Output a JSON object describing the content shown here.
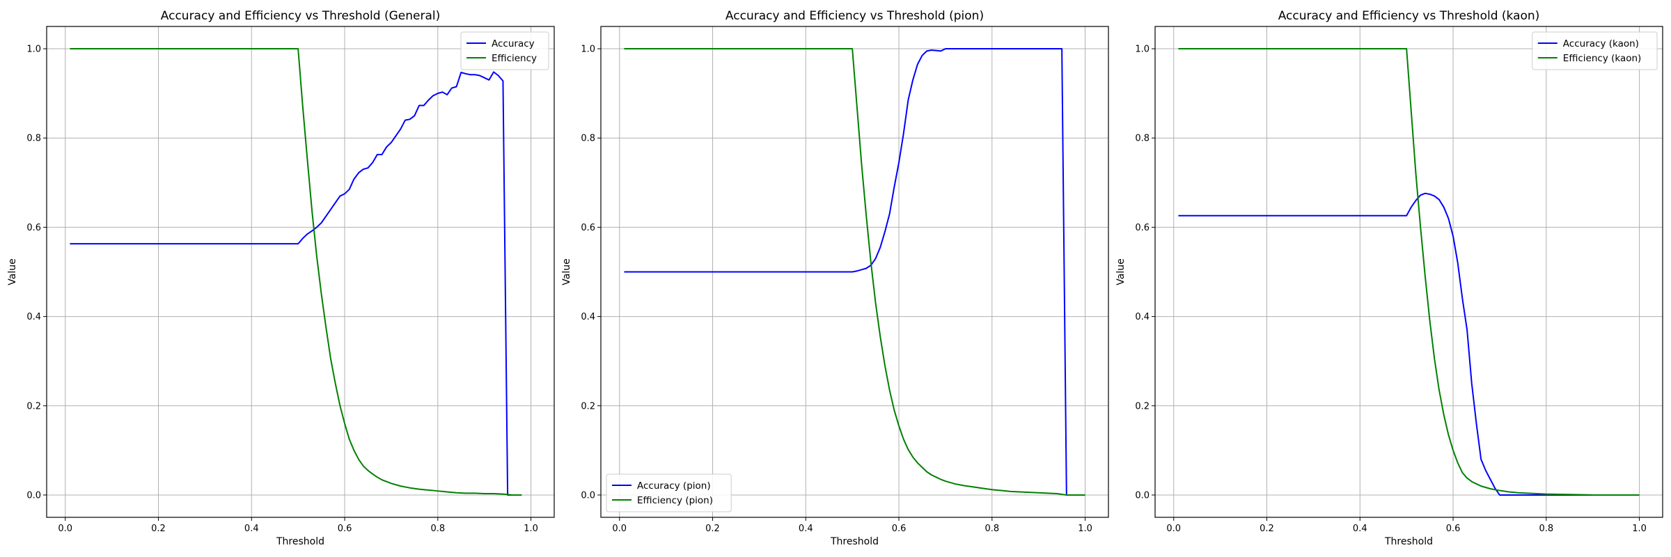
{
  "figure": {
    "colors": {
      "accuracy": "#0000ff",
      "efficiency": "#008000",
      "grid": "#b0b0b0",
      "axes": "#000000",
      "legend_border": "#cccccc"
    }
  },
  "chart_data": [
    {
      "type": "line",
      "title": "Accuracy and Efficiency vs Threshold (General)",
      "xlabel": "Threshold",
      "ylabel": "Value",
      "xlim": [
        -0.04,
        1.05
      ],
      "ylim": [
        -0.05,
        1.05
      ],
      "xticks": [
        "0.0",
        "0.2",
        "0.4",
        "0.6",
        "0.8",
        "1.0"
      ],
      "yticks": [
        "0.0",
        "0.2",
        "0.4",
        "0.6",
        "0.8",
        "1.0"
      ],
      "grid": true,
      "legend_position": "upper right",
      "series": [
        {
          "name": "Accuracy",
          "color": "#0000ff",
          "points": [
            [
              0.01,
              0.563
            ],
            [
              0.5,
              0.563
            ],
            [
              0.51,
              0.575
            ],
            [
              0.52,
              0.585
            ],
            [
              0.53,
              0.592
            ],
            [
              0.54,
              0.6
            ],
            [
              0.55,
              0.61
            ],
            [
              0.56,
              0.625
            ],
            [
              0.57,
              0.64
            ],
            [
              0.58,
              0.655
            ],
            [
              0.59,
              0.67
            ],
            [
              0.6,
              0.675
            ],
            [
              0.61,
              0.685
            ],
            [
              0.62,
              0.708
            ],
            [
              0.63,
              0.722
            ],
            [
              0.64,
              0.73
            ],
            [
              0.65,
              0.733
            ],
            [
              0.66,
              0.745
            ],
            [
              0.67,
              0.763
            ],
            [
              0.68,
              0.763
            ],
            [
              0.69,
              0.78
            ],
            [
              0.7,
              0.79
            ],
            [
              0.71,
              0.805
            ],
            [
              0.72,
              0.82
            ],
            [
              0.73,
              0.84
            ],
            [
              0.74,
              0.842
            ],
            [
              0.75,
              0.85
            ],
            [
              0.76,
              0.873
            ],
            [
              0.77,
              0.873
            ],
            [
              0.78,
              0.885
            ],
            [
              0.79,
              0.895
            ],
            [
              0.8,
              0.9
            ],
            [
              0.81,
              0.903
            ],
            [
              0.82,
              0.897
            ],
            [
              0.83,
              0.912
            ],
            [
              0.84,
              0.915
            ],
            [
              0.85,
              0.947
            ],
            [
              0.86,
              0.944
            ],
            [
              0.87,
              0.942
            ],
            [
              0.88,
              0.942
            ],
            [
              0.89,
              0.94
            ],
            [
              0.9,
              0.935
            ],
            [
              0.91,
              0.93
            ],
            [
              0.92,
              0.948
            ],
            [
              0.93,
              0.94
            ],
            [
              0.94,
              0.928
            ],
            [
              0.95,
              0.0
            ],
            [
              0.98,
              0.0
            ]
          ]
        },
        {
          "name": "Efficiency",
          "color": "#008000",
          "points": [
            [
              0.01,
              1.0
            ],
            [
              0.5,
              1.0
            ],
            [
              0.51,
              0.87
            ],
            [
              0.52,
              0.75
            ],
            [
              0.53,
              0.635
            ],
            [
              0.54,
              0.535
            ],
            [
              0.55,
              0.45
            ],
            [
              0.56,
              0.375
            ],
            [
              0.57,
              0.305
            ],
            [
              0.58,
              0.25
            ],
            [
              0.59,
              0.2
            ],
            [
              0.6,
              0.16
            ],
            [
              0.61,
              0.125
            ],
            [
              0.62,
              0.1
            ],
            [
              0.63,
              0.08
            ],
            [
              0.64,
              0.065
            ],
            [
              0.65,
              0.055
            ],
            [
              0.66,
              0.047
            ],
            [
              0.67,
              0.04
            ],
            [
              0.68,
              0.034
            ],
            [
              0.69,
              0.03
            ],
            [
              0.7,
              0.026
            ],
            [
              0.72,
              0.02
            ],
            [
              0.74,
              0.016
            ],
            [
              0.76,
              0.013
            ],
            [
              0.78,
              0.011
            ],
            [
              0.8,
              0.009
            ],
            [
              0.82,
              0.007
            ],
            [
              0.84,
              0.005
            ],
            [
              0.86,
              0.004
            ],
            [
              0.88,
              0.004
            ],
            [
              0.9,
              0.003
            ],
            [
              0.92,
              0.003
            ],
            [
              0.94,
              0.002
            ],
            [
              0.96,
              0.0
            ],
            [
              0.98,
              0.0
            ]
          ]
        }
      ]
    },
    {
      "type": "line",
      "title": "Accuracy and Efficiency vs Threshold (pion)",
      "xlabel": "Threshold",
      "ylabel": "Value",
      "xlim": [
        -0.04,
        1.05
      ],
      "ylim": [
        -0.05,
        1.05
      ],
      "xticks": [
        "0.0",
        "0.2",
        "0.4",
        "0.6",
        "0.8",
        "1.0"
      ],
      "yticks": [
        "0.0",
        "0.2",
        "0.4",
        "0.6",
        "0.8",
        "1.0"
      ],
      "grid": true,
      "legend_position": "lower left",
      "series": [
        {
          "name": "Accuracy (pion)",
          "color": "#0000ff",
          "points": [
            [
              0.01,
              0.5
            ],
            [
              0.5,
              0.5
            ],
            [
              0.51,
              0.502
            ],
            [
              0.52,
              0.505
            ],
            [
              0.53,
              0.508
            ],
            [
              0.54,
              0.515
            ],
            [
              0.55,
              0.53
            ],
            [
              0.56,
              0.555
            ],
            [
              0.57,
              0.59
            ],
            [
              0.58,
              0.63
            ],
            [
              0.59,
              0.69
            ],
            [
              0.6,
              0.745
            ],
            [
              0.61,
              0.81
            ],
            [
              0.62,
              0.885
            ],
            [
              0.63,
              0.93
            ],
            [
              0.64,
              0.965
            ],
            [
              0.65,
              0.985
            ],
            [
              0.66,
              0.995
            ],
            [
              0.67,
              0.997
            ],
            [
              0.68,
              0.996
            ],
            [
              0.69,
              0.995
            ],
            [
              0.7,
              1.0
            ],
            [
              0.72,
              1.0
            ],
            [
              0.8,
              1.0
            ],
            [
              0.9,
              1.0
            ],
            [
              0.95,
              1.0
            ],
            [
              0.96,
              0.0
            ],
            [
              1.0,
              0.0
            ]
          ]
        },
        {
          "name": "Efficiency (pion)",
          "color": "#008000",
          "points": [
            [
              0.01,
              1.0
            ],
            [
              0.5,
              1.0
            ],
            [
              0.51,
              0.87
            ],
            [
              0.52,
              0.74
            ],
            [
              0.53,
              0.625
            ],
            [
              0.54,
              0.52
            ],
            [
              0.55,
              0.43
            ],
            [
              0.56,
              0.355
            ],
            [
              0.57,
              0.29
            ],
            [
              0.58,
              0.235
            ],
            [
              0.59,
              0.19
            ],
            [
              0.6,
              0.155
            ],
            [
              0.61,
              0.125
            ],
            [
              0.62,
              0.102
            ],
            [
              0.63,
              0.085
            ],
            [
              0.64,
              0.072
            ],
            [
              0.65,
              0.062
            ],
            [
              0.66,
              0.052
            ],
            [
              0.67,
              0.045
            ],
            [
              0.68,
              0.04
            ],
            [
              0.69,
              0.035
            ],
            [
              0.7,
              0.031
            ],
            [
              0.72,
              0.025
            ],
            [
              0.74,
              0.021
            ],
            [
              0.76,
              0.018
            ],
            [
              0.78,
              0.015
            ],
            [
              0.8,
              0.012
            ],
            [
              0.82,
              0.01
            ],
            [
              0.84,
              0.008
            ],
            [
              0.86,
              0.007
            ],
            [
              0.88,
              0.006
            ],
            [
              0.9,
              0.005
            ],
            [
              0.92,
              0.004
            ],
            [
              0.94,
              0.003
            ],
            [
              0.96,
              0.0
            ],
            [
              1.0,
              0.0
            ]
          ]
        }
      ]
    },
    {
      "type": "line",
      "title": "Accuracy and Efficiency vs Threshold (kaon)",
      "xlabel": "Threshold",
      "ylabel": "Value",
      "xlim": [
        -0.04,
        1.05
      ],
      "ylim": [
        -0.05,
        1.05
      ],
      "xticks": [
        "0.0",
        "0.2",
        "0.4",
        "0.6",
        "0.8",
        "1.0"
      ],
      "yticks": [
        "0.0",
        "0.2",
        "0.4",
        "0.6",
        "0.8",
        "1.0"
      ],
      "grid": true,
      "legend_position": "upper right",
      "series": [
        {
          "name": "Accuracy (kaon)",
          "color": "#0000ff",
          "points": [
            [
              0.01,
              0.626
            ],
            [
              0.5,
              0.626
            ],
            [
              0.51,
              0.645
            ],
            [
              0.52,
              0.66
            ],
            [
              0.53,
              0.672
            ],
            [
              0.54,
              0.676
            ],
            [
              0.55,
              0.674
            ],
            [
              0.56,
              0.67
            ],
            [
              0.57,
              0.662
            ],
            [
              0.58,
              0.645
            ],
            [
              0.59,
              0.62
            ],
            [
              0.6,
              0.58
            ],
            [
              0.61,
              0.52
            ],
            [
              0.62,
              0.44
            ],
            [
              0.63,
              0.37
            ],
            [
              0.64,
              0.25
            ],
            [
              0.65,
              0.16
            ],
            [
              0.66,
              0.08
            ],
            [
              0.67,
              0.055
            ],
            [
              0.68,
              0.035
            ],
            [
              0.69,
              0.015
            ],
            [
              0.7,
              0.0
            ],
            [
              1.0,
              0.0
            ]
          ]
        },
        {
          "name": "Efficiency (kaon)",
          "color": "#008000",
          "points": [
            [
              0.01,
              1.0
            ],
            [
              0.5,
              1.0
            ],
            [
              0.51,
              0.86
            ],
            [
              0.52,
              0.72
            ],
            [
              0.53,
              0.6
            ],
            [
              0.54,
              0.49
            ],
            [
              0.55,
              0.39
            ],
            [
              0.56,
              0.305
            ],
            [
              0.57,
              0.235
            ],
            [
              0.58,
              0.18
            ],
            [
              0.59,
              0.135
            ],
            [
              0.6,
              0.1
            ],
            [
              0.61,
              0.072
            ],
            [
              0.62,
              0.05
            ],
            [
              0.63,
              0.038
            ],
            [
              0.64,
              0.03
            ],
            [
              0.65,
              0.025
            ],
            [
              0.66,
              0.02
            ],
            [
              0.68,
              0.014
            ],
            [
              0.7,
              0.01
            ],
            [
              0.72,
              0.007
            ],
            [
              0.74,
              0.005
            ],
            [
              0.76,
              0.004
            ],
            [
              0.78,
              0.003
            ],
            [
              0.8,
              0.002
            ],
            [
              0.85,
              0.001
            ],
            [
              0.9,
              0.0
            ],
            [
              1.0,
              0.0
            ]
          ]
        }
      ]
    }
  ]
}
